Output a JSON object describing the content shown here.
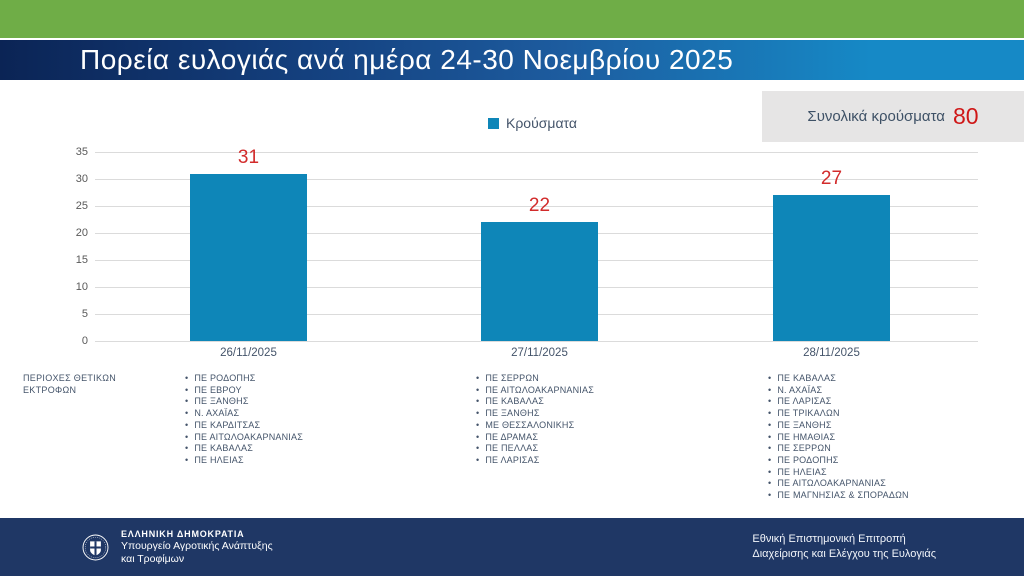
{
  "header": {
    "title": "Πορεία ευλογιάς ανά ημέρα 24-30 Νοεμβρίου 2025"
  },
  "legend": {
    "label": "Κρούσματα"
  },
  "total": {
    "label": "Συνολικά κρούσματα",
    "value": "80"
  },
  "chart_data": {
    "type": "bar",
    "title": "Πορεία ευλογιάς ανά ημέρα 24-30 Νοεμβρίου 2025",
    "categories": [
      "26/11/2025",
      "27/11/2025",
      "28/11/2025"
    ],
    "series": [
      {
        "name": "Κρούσματα",
        "values": [
          31,
          22,
          27
        ]
      }
    ],
    "values": [
      31,
      22,
      27
    ],
    "data_labels": [
      "31",
      "22",
      "27"
    ],
    "yticks": [
      35,
      30,
      25,
      20,
      15,
      10,
      5,
      0
    ],
    "ylim": [
      0,
      35
    ],
    "grid": "horizontal",
    "legend_position": "top-center",
    "bar_color": "#0e86b8",
    "data_label_color": "#d22b2b"
  },
  "side_label": {
    "line1": "ΠΕΡΙΟΧΕΣ ΘΕΤΙΚΩΝ",
    "line2": "ΕΚΤΡΟΦΩΝ"
  },
  "region_lists": [
    [
      "ΠΕ ΡΟΔΟΠΗΣ",
      "ΠΕ ΕΒΡΟΥ",
      "ΠΕ ΞΑΝΘΗΣ",
      "Ν. ΑΧΑΪΑΣ",
      "ΠΕ ΚΑΡΔΙΤΣΑΣ",
      "ΠΕ ΑΙΤΩΛΟΑΚΑΡΝΑΝΙΑΣ",
      "ΠΕ ΚΑΒΑΛΑΣ",
      "ΠΕ ΗΛΕΙΑΣ"
    ],
    [
      "ΠΕ ΣΕΡΡΩΝ",
      "ΠΕ ΑΙΤΩΛΟΑΚΑΡΝΑΝΙΑΣ",
      "ΠΕ ΚΑΒΑΛΑΣ",
      "ΠΕ ΞΑΝΘΗΣ",
      "ΜΕ ΘΕΣΣΑΛΟΝΙΚΗΣ",
      "ΠΕ ΔΡΑΜΑΣ",
      "ΠΕ ΠΕΛΛΑΣ",
      "ΠΕ ΛΑΡΙΣΑΣ"
    ],
    [
      "ΠΕ ΚΑΒΑΛΑΣ",
      "Ν. ΑΧΑΪΑΣ",
      "ΠΕ ΛΑΡΙΣΑΣ",
      "ΠΕ ΤΡΙΚΑΛΩΝ",
      "ΠΕ ΞΑΝΘΗΣ",
      "ΠΕ ΗΜΑΘΙΑΣ",
      "ΠΕ ΣΕΡΡΩΝ",
      "ΠΕ ΡΟΔΟΠΗΣ",
      "ΠΕ ΗΛΕΙΑΣ",
      "ΠΕ ΑΙΤΩΛΟΑΚΑΡΝΑΝΙΑΣ",
      "ΠΕ ΜΑΓΝΗΣΙΑΣ & ΣΠΟΡΑΔΩΝ"
    ]
  ],
  "footer": {
    "left": {
      "line1": "ΕΛΛΗΝΙΚΗ ΔΗΜΟΚΡΑΤΙΑ",
      "line2": "Υπουργείο Αγροτικής Ανάπτυξης",
      "line3": "και Τροφίμων"
    },
    "right": {
      "line1": "Εθνική Επιστημονική Επιτροπή",
      "line2": "Διαχείρισης και Ελέγχου της Ευλογιάς"
    }
  },
  "colors": {
    "top_strip_green": "#6fad47",
    "header_gradient_left": "#0b2455",
    "header_gradient_right": "#1689c6",
    "footer_navy": "#1f3765",
    "total_box_bg": "#e6e5e5",
    "total_value_red": "#cf1717",
    "bar_blue": "#0e86b8",
    "label_red": "#d22b2b"
  }
}
